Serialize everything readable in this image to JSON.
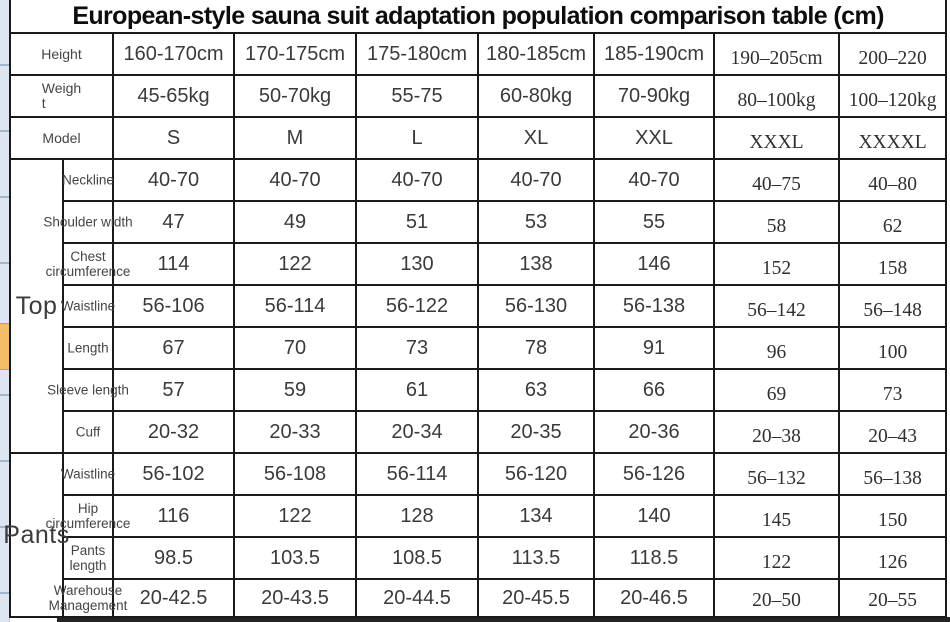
{
  "title": "European-style sauna suit adaptation population comparison table (cm)",
  "header_rows": [
    {
      "label": "Height",
      "values": [
        "160-170cm",
        "170-175cm",
        "175-180cm",
        "180-185cm",
        "185-190cm",
        "190–205cm",
        "200–220"
      ]
    },
    {
      "label": "Weigh\nt",
      "values": [
        "45-65kg",
        "50-70kg",
        "55-75",
        "60-80kg",
        "70-90kg",
        "80–100kg",
        "100–120kg"
      ]
    },
    {
      "label": "Model",
      "values": [
        "S",
        "M",
        "L",
        "XL",
        "XXL",
        "XXXL",
        "XXXXL"
      ]
    }
  ],
  "sections": [
    {
      "label": "Top",
      "rows": [
        {
          "label": "Neckline",
          "values": [
            "40-70",
            "40-70",
            "40-70",
            "40-70",
            "40-70",
            "40–75",
            "40–80"
          ]
        },
        {
          "label": "Shoulder width",
          "values": [
            "47",
            "49",
            "51",
            "53",
            "55",
            "58",
            "62"
          ]
        },
        {
          "label": "Chest\ncircumference",
          "values": [
            "114",
            "122",
            "130",
            "138",
            "146",
            "152",
            "158"
          ]
        },
        {
          "label": "Waistline",
          "values": [
            "56-106",
            "56-114",
            "56-122",
            "56-130",
            "56-138",
            "56–142",
            "56–148"
          ]
        },
        {
          "label": "Length",
          "values": [
            "67",
            "70",
            "73",
            "78",
            "91",
            "96",
            "100"
          ]
        },
        {
          "label": "Sleeve length",
          "values": [
            "57",
            "59",
            "61",
            "63",
            "66",
            "69",
            "73"
          ]
        },
        {
          "label": "Cuff",
          "values": [
            "20-32",
            "20-33",
            "20-34",
            "20-35",
            "20-36",
            "20–38",
            "20–43"
          ]
        }
      ]
    },
    {
      "label": "Pants",
      "rows": [
        {
          "label": "Waistline",
          "values": [
            "56-102",
            "56-108",
            "56-114",
            "56-120",
            "56-126",
            "56–132",
            "56–138"
          ]
        },
        {
          "label": "Hip\ncircumference",
          "values": [
            "116",
            "122",
            "128",
            "134",
            "140",
            "145",
            "150"
          ]
        },
        {
          "label": "Pants\nlength",
          "values": [
            "98.5",
            "103.5",
            "108.5",
            "113.5",
            "118.5",
            "122",
            "126"
          ]
        },
        {
          "label": "Warehouse\nManagement",
          "values": [
            "20-42.5",
            "20-43.5",
            "20-44.5",
            "20-45.5",
            "20-46.5",
            "20–50",
            "20–55"
          ]
        }
      ]
    }
  ],
  "colors": {
    "highlight_orange": "#f4bd67",
    "sheet_strip_blue": "#dce5f1",
    "border_black": "#1a1a1a"
  }
}
